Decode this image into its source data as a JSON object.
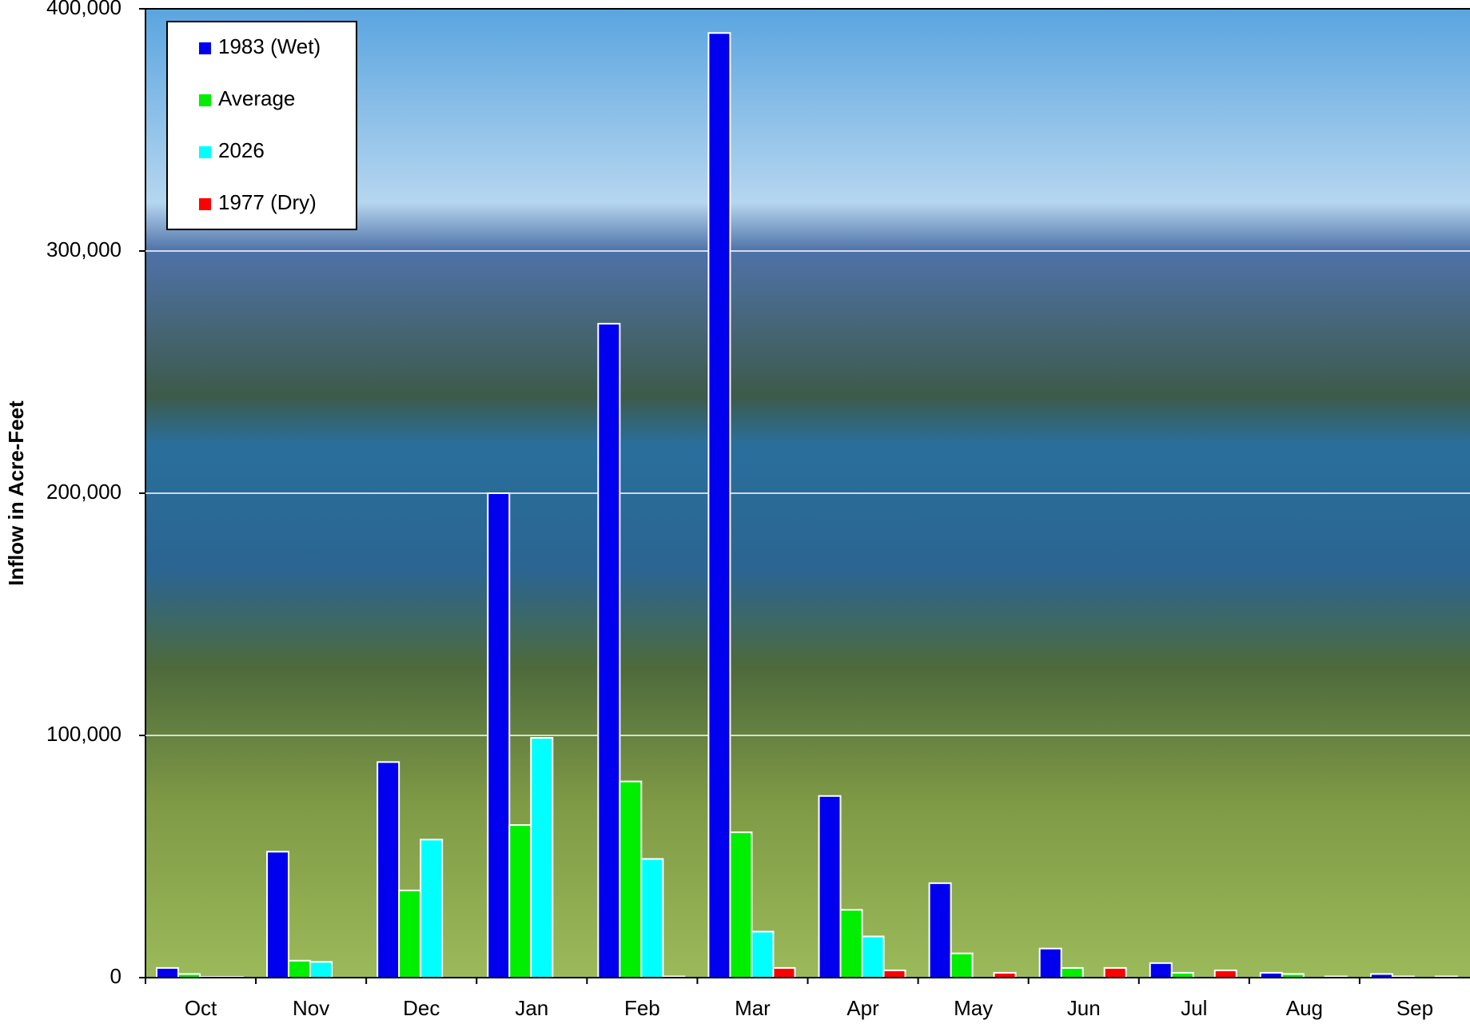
{
  "chart_data": {
    "type": "bar",
    "y_label": "Inflow in Acre-Feet",
    "categories": [
      "Oct",
      "Nov",
      "Dec",
      "Jan",
      "Feb",
      "Mar",
      "Apr",
      "May",
      "Jun",
      "Jul",
      "Aug",
      "Sep"
    ],
    "series": [
      {
        "name": "1983 (Wet)",
        "color": "#0000ee",
        "values": [
          4000,
          52000,
          89000,
          200000,
          270000,
          390000,
          75000,
          39000,
          12000,
          6000,
          2000,
          1500
        ]
      },
      {
        "name": "Average",
        "color": "#00ee00",
        "values": [
          1500,
          7000,
          36000,
          63000,
          81000,
          60000,
          28000,
          10000,
          4000,
          2000,
          1500,
          500
        ]
      },
      {
        "name": "2026",
        "color": "#00ffff",
        "values": [
          300,
          6500,
          57000,
          99000,
          49000,
          19000,
          17000,
          null,
          null,
          null,
          null,
          null
        ]
      },
      {
        "name": "1977 (Dry)",
        "color": "#ff0000",
        "values": [
          300,
          0,
          0,
          0,
          500,
          4000,
          3000,
          2000,
          4000,
          3000,
          500,
          500
        ]
      }
    ],
    "ylim": [
      0,
      400000
    ],
    "yticks": [
      0,
      {
        "value": 100000,
        "label": "100,000"
      },
      {
        "value": 200000,
        "label": "200,000"
      },
      {
        "value": 300000,
        "label": "300,000"
      },
      {
        "value": 400000,
        "label": "400,000"
      }
    ],
    "grid": true,
    "legend": "upper left"
  }
}
